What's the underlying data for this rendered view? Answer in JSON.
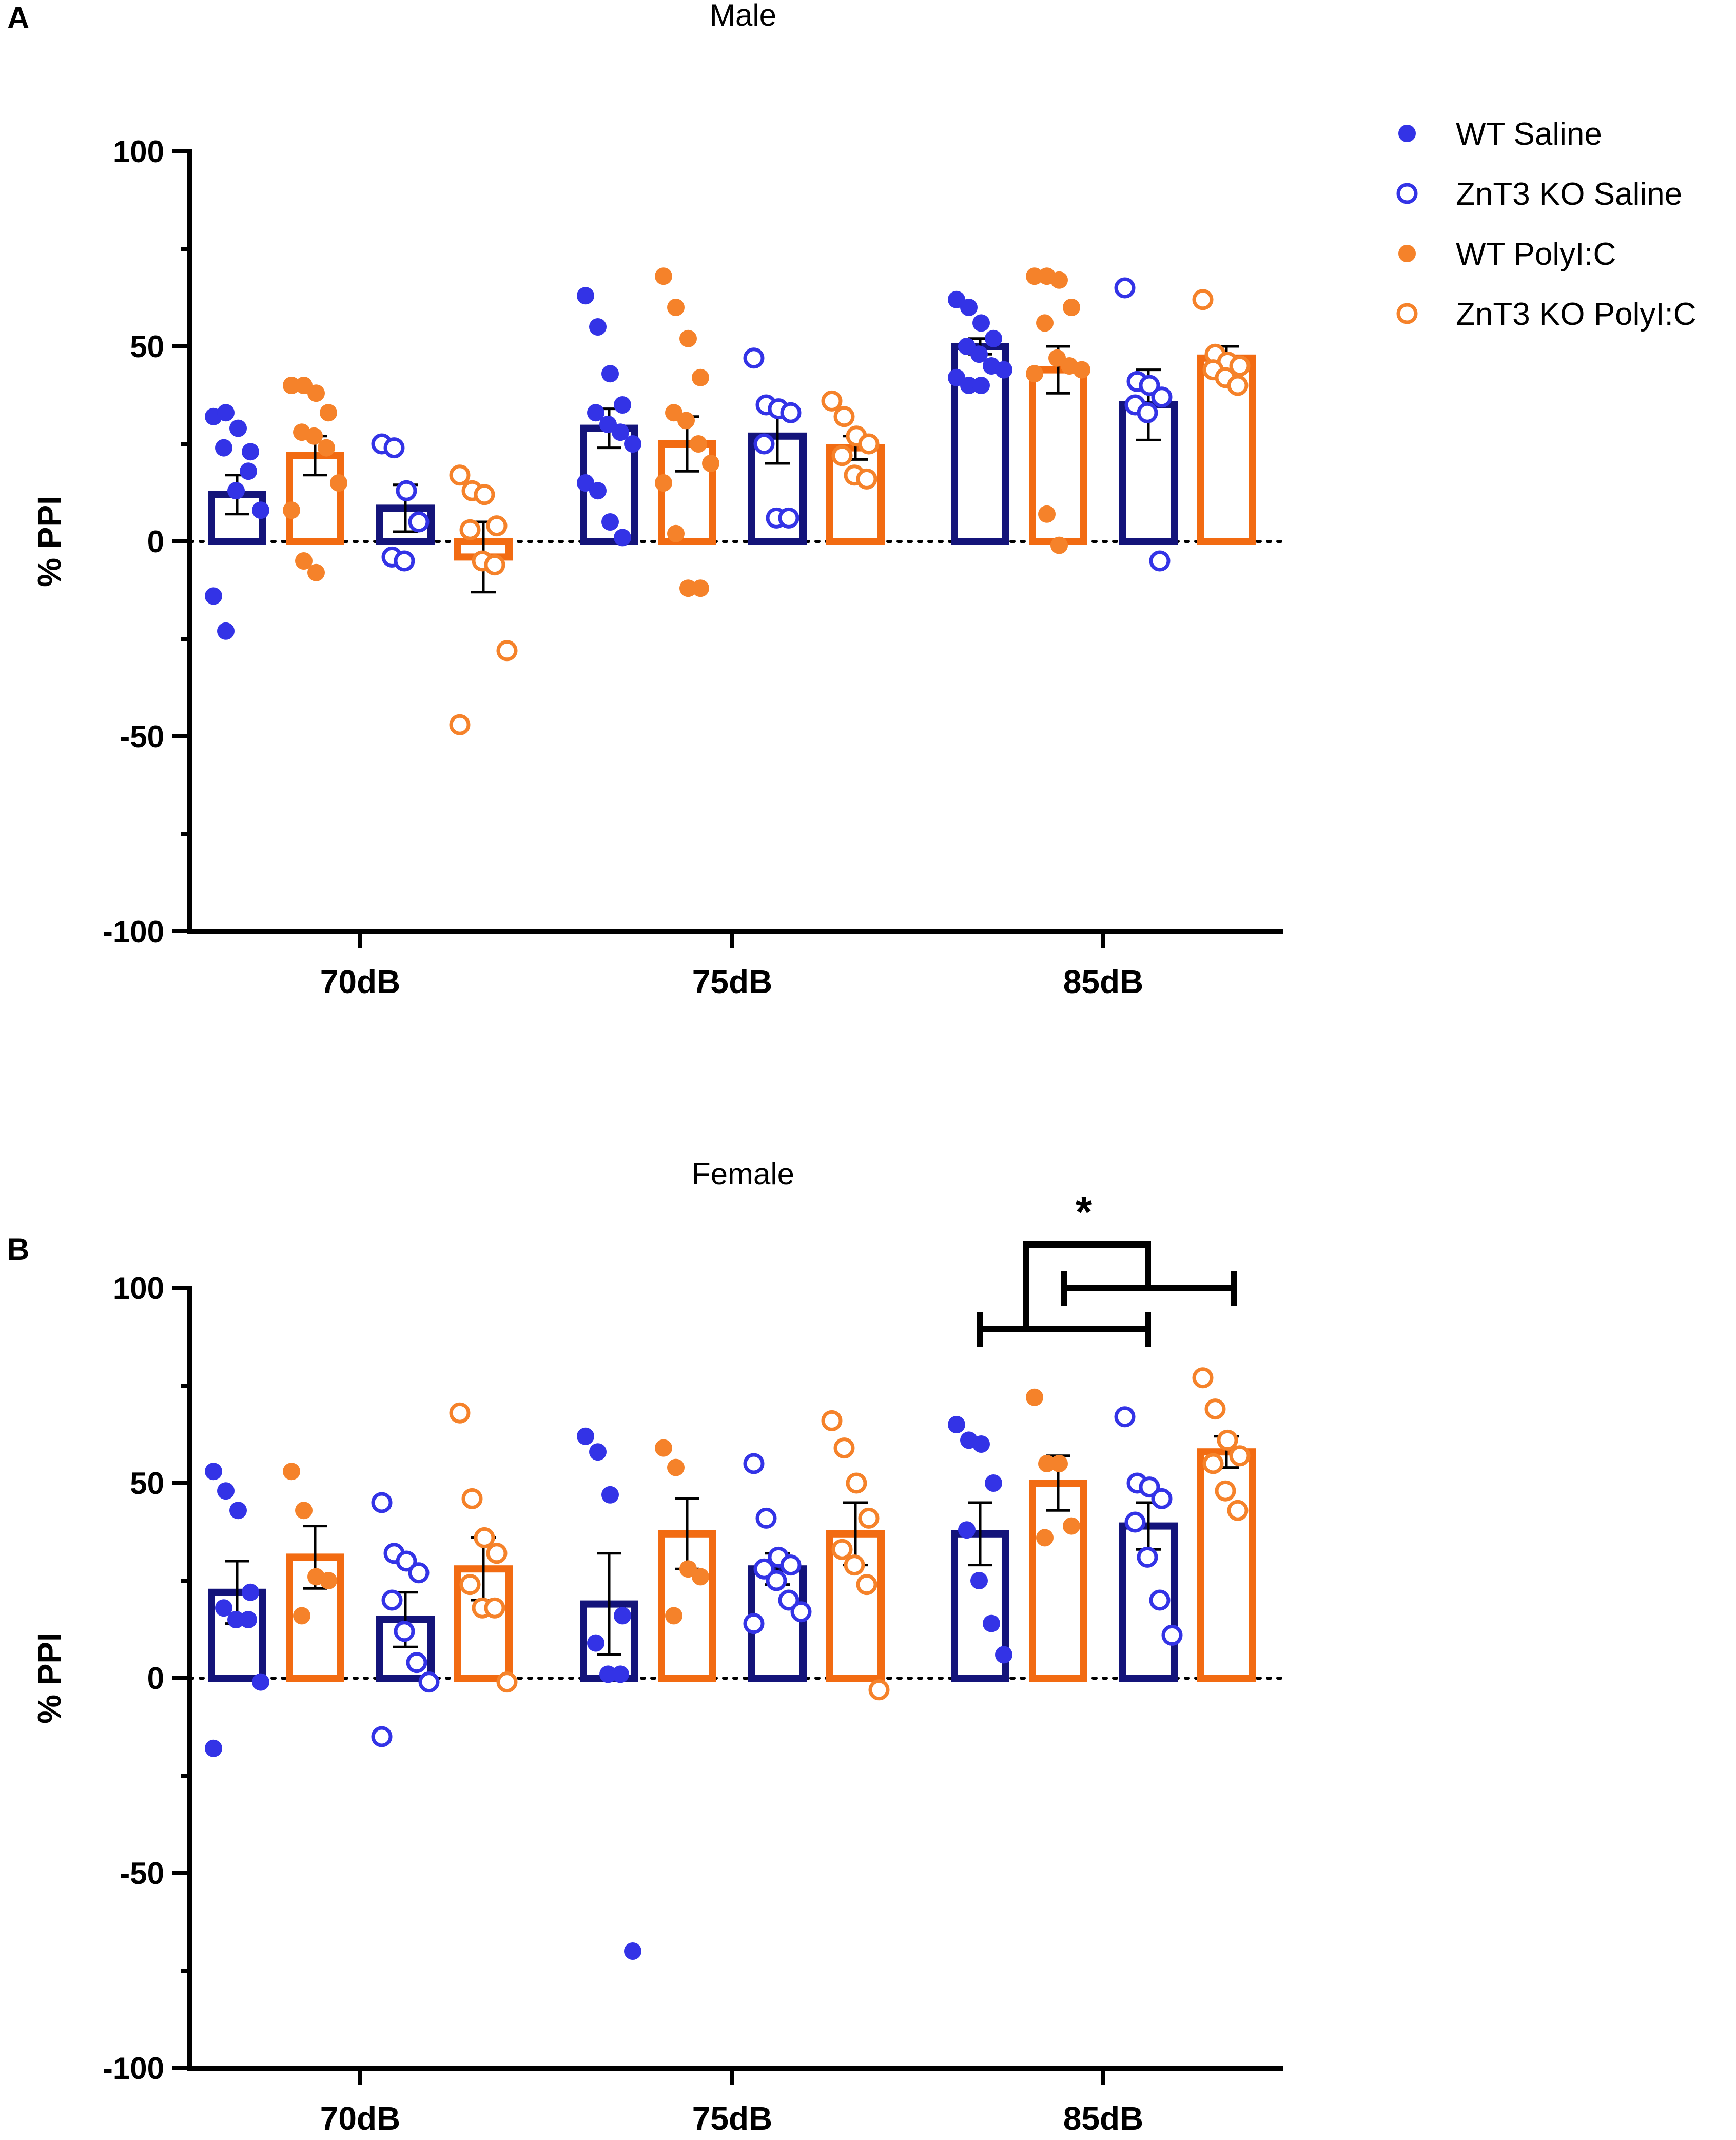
{
  "figure": {
    "legend": [
      {
        "label": "WT Saline",
        "color": "#3333e6",
        "fill": "solid"
      },
      {
        "label": "ZnT3 KO Saline",
        "color": "#3333e6",
        "fill": "open"
      },
      {
        "label": "WT PolyI:C",
        "color": "#f5822a",
        "fill": "solid"
      },
      {
        "label": "ZnT3 KO PolyI:C",
        "color": "#f5822a",
        "fill": "open"
      }
    ],
    "colors": {
      "saline_bar": "#14147a",
      "saline_point": "#3333e6",
      "polyic_bar": "#f26b12",
      "polyic_point": "#f5822a",
      "axis": "#000000"
    }
  },
  "chart_data": [
    {
      "type": "bar",
      "panel_letter": "A",
      "title": "Male",
      "ylabel": "% PPI",
      "xlabel": "",
      "ylim": [
        -100,
        100
      ],
      "yticks": [
        -100,
        -50,
        0,
        50,
        100
      ],
      "categories": [
        "70dB",
        "75dB",
        "85dB"
      ],
      "series": [
        {
          "name": "WT Saline",
          "means": [
            12,
            29,
            50
          ],
          "sem": [
            5,
            5,
            2
          ],
          "points": [
            [
              32,
              33,
              29,
              23,
              24,
              13,
              18,
              8,
              -14,
              -23
            ],
            [
              63,
              55,
              43,
              35,
              33,
              30,
              28,
              25,
              15,
              13,
              5,
              1
            ],
            [
              62,
              60,
              56,
              52,
              50,
              48,
              45,
              44,
              42,
              40,
              40
            ]
          ]
        },
        {
          "name": "WT PolyI:C",
          "means": [
            22,
            25,
            44
          ],
          "sem": [
            5,
            7,
            6
          ],
          "points": [
            [
              40,
              40,
              38,
              33,
              28,
              27,
              24,
              15,
              8,
              -5,
              -8
            ],
            [
              68,
              60,
              52,
              42,
              33,
              31,
              25,
              20,
              15,
              2,
              -12,
              -12
            ],
            [
              68,
              68,
              67,
              60,
              56,
              47,
              45,
              44,
              43,
              7,
              -1
            ]
          ]
        },
        {
          "name": "ZnT3 KO Saline",
          "means": [
            8.5,
            27,
            35
          ],
          "sem": [
            6,
            7,
            9
          ],
          "points": [
            [
              25,
              24,
              13,
              5,
              -4,
              -5
            ],
            [
              47,
              35,
              34,
              33,
              25,
              6,
              6
            ],
            [
              65,
              41,
              40,
              37,
              35,
              33,
              -5
            ]
          ]
        },
        {
          "name": "ZnT3 KO PolyI:C",
          "means": [
            -4,
            24,
            47
          ],
          "sem": [
            9,
            3,
            3
          ],
          "points": [
            [
              17,
              13,
              12,
              4,
              3,
              -5,
              -6,
              -28,
              -47
            ],
            [
              36,
              32,
              27,
              25,
              22,
              17,
              16
            ],
            [
              62,
              48,
              46,
              45,
              44,
              42,
              40
            ]
          ]
        }
      ]
    },
    {
      "type": "bar",
      "panel_letter": "B",
      "title": "Female",
      "ylabel": "% PPI",
      "xlabel": "",
      "ylim": [
        -100,
        100
      ],
      "yticks": [
        -100,
        -50,
        0,
        50,
        100
      ],
      "categories": [
        "70dB",
        "75dB",
        "85dB"
      ],
      "series": [
        {
          "name": "WT Saline",
          "means": [
            22,
            19,
            37
          ],
          "sem": [
            8,
            13,
            8
          ],
          "points": [
            [
              53,
              48,
              43,
              22,
              18,
              15,
              15,
              -1,
              -18
            ],
            [
              62,
              58,
              47,
              16,
              9,
              1,
              1,
              -70
            ],
            [
              65,
              61,
              60,
              50,
              38,
              25,
              14,
              6
            ]
          ]
        },
        {
          "name": "WT PolyI:C",
          "means": [
            31,
            37,
            50
          ],
          "sem": [
            8,
            9,
            7
          ],
          "points": [
            [
              53,
              43,
              26,
              25,
              16
            ],
            [
              59,
              54,
              28,
              26,
              16
            ],
            [
              72,
              55,
              55,
              39,
              36
            ]
          ]
        },
        {
          "name": "ZnT3 KO Saline",
          "means": [
            15,
            28,
            39
          ],
          "sem": [
            7,
            4,
            6
          ],
          "points": [
            [
              45,
              32,
              30,
              27,
              20,
              12,
              4,
              -1,
              -15
            ],
            [
              55,
              41,
              31,
              29,
              28,
              25,
              20,
              17,
              14
            ],
            [
              67,
              50,
              49,
              46,
              40,
              31,
              20,
              11
            ]
          ]
        },
        {
          "name": "ZnT3 KO PolyI:C",
          "means": [
            28,
            37,
            58
          ],
          "sem": [
            8,
            8,
            4
          ],
          "points": [
            [
              68,
              46,
              36,
              32,
              24,
              18,
              18,
              -1
            ],
            [
              66,
              59,
              50,
              41,
              33,
              29,
              24,
              -3
            ],
            [
              77,
              69,
              61,
              57,
              55,
              48,
              43
            ]
          ]
        }
      ],
      "annotations": [
        {
          "text": "*",
          "category": "85dB",
          "description": "significance brackets"
        }
      ]
    }
  ]
}
